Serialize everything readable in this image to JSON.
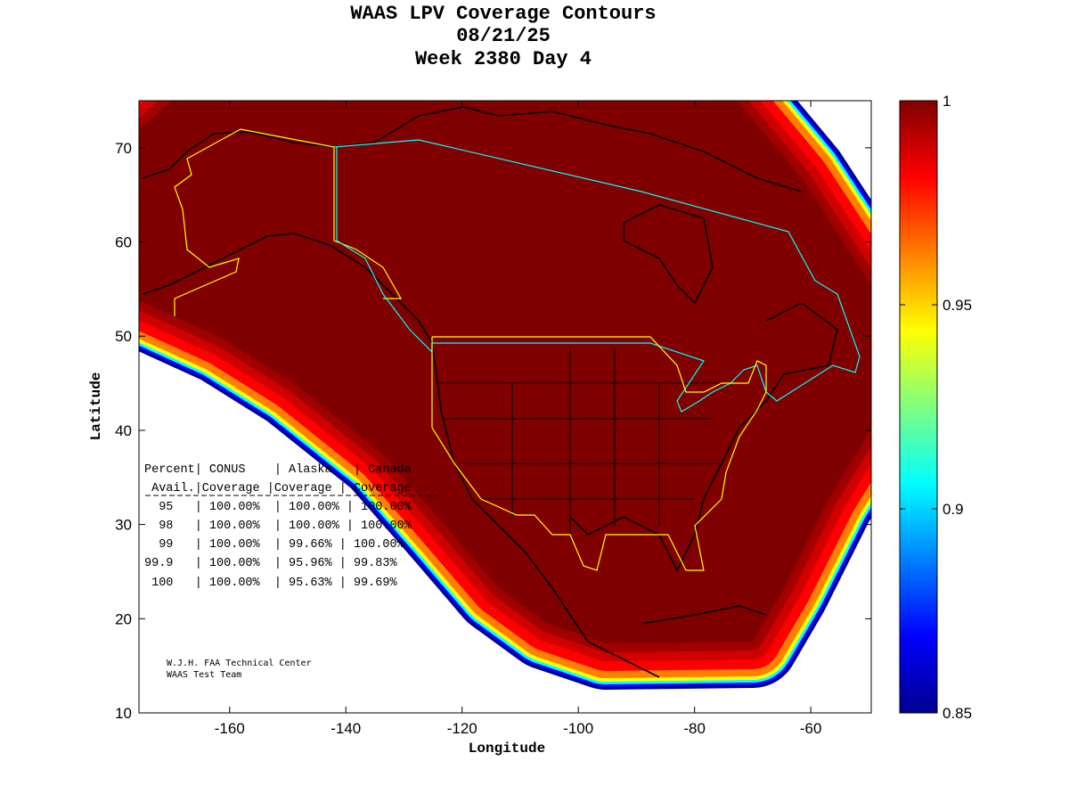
{
  "title": {
    "line1": "WAAS LPV Coverage Contours",
    "line2": "08/21/25",
    "line3": "Week 2380 Day 4"
  },
  "chart_data": {
    "type": "heatmap",
    "title": "WAAS LPV Coverage Contours 08/21/25 Week 2380 Day 4",
    "xlabel": "Longitude",
    "ylabel": "Latitude",
    "xlim": [
      -175.6,
      -49.6
    ],
    "ylim": [
      10,
      75
    ],
    "xticks": [
      -160,
      -140,
      -120,
      -100,
      -80,
      -60
    ],
    "yticks": [
      10,
      20,
      30,
      40,
      50,
      60,
      70
    ],
    "colorbar": {
      "range": [
        0.85,
        1
      ],
      "ticks": [
        "1",
        "0.95",
        "0.9",
        "0.85"
      ],
      "tick_values": [
        1,
        0.95,
        0.9,
        0.85
      ],
      "colormap": "jet"
    },
    "grid": false
  },
  "table": {
    "rows": [
      "Percent| CONUS    | Alaska   | Canada",
      " Avail.|Coverage |Coverage | Coverage",
      "  95   | 100.00%  | 100.00% | 100.00%",
      "  98   | 100.00%  | 100.00% | 100.00%",
      "  99   | 100.00%  | 99.66% | 100.00%",
      "99.9   | 100.00%  | 95.96% | 99.83%",
      " 100   | 100.00%  | 95.63% | 99.69%"
    ]
  },
  "credits": {
    "line1": "W.J.H. FAA Technical Center",
    "line2": "WAAS Test Team"
  },
  "colors": {
    "dark_red": "#800000",
    "alaska_boundary": "#ffff00",
    "canada_boundary": "#00ffff",
    "conus_boundary": "#ffff00"
  }
}
